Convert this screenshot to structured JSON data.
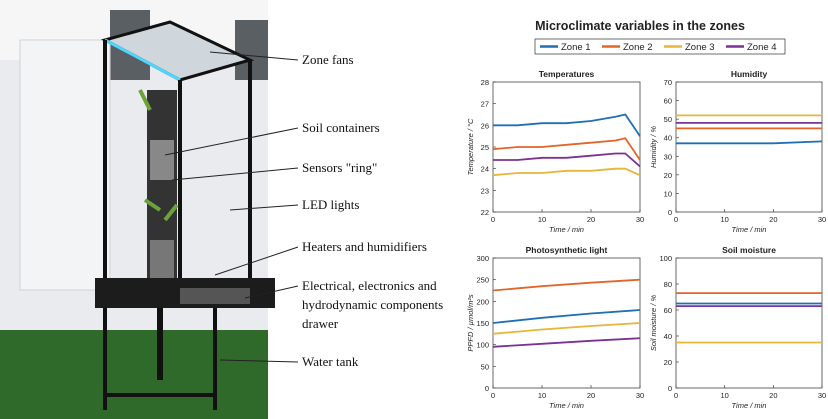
{
  "photo_labels": [
    "Zone fans",
    "Soil containers",
    "Sensors \"ring\"",
    "LED lights",
    "Heaters and humidifiers",
    [
      "Electrical, electronics and",
      "hydrodynamic components",
      "drawer"
    ],
    "Water tank"
  ],
  "figure_title": "Microclimate variables in the zones",
  "chart_data": [
    {
      "type": "line",
      "title": "Temperatures",
      "x_label": "Time / min",
      "y_label": "Temperature / °C",
      "x": [
        0,
        5,
        10,
        15,
        20,
        25,
        27,
        30
      ],
      "xlim": [
        0,
        30
      ],
      "xticks": [
        0,
        10,
        20,
        30
      ],
      "ylim": [
        22,
        28
      ],
      "yticks": [
        22,
        23,
        24,
        25,
        26,
        27,
        28
      ],
      "series": [
        {
          "name": "Zone 1",
          "color": "#1f6fb5",
          "values": [
            26.0,
            26.0,
            26.1,
            26.1,
            26.2,
            26.4,
            26.5,
            25.5
          ]
        },
        {
          "name": "Zone 2",
          "color": "#e0662a",
          "values": [
            24.9,
            25.0,
            25.0,
            25.1,
            25.2,
            25.3,
            25.4,
            24.4
          ]
        },
        {
          "name": "Zone 3",
          "color": "#e8b53a",
          "values": [
            23.7,
            23.8,
            23.8,
            23.9,
            23.9,
            24.0,
            24.0,
            23.7
          ]
        },
        {
          "name": "Zone 4",
          "color": "#7b3294",
          "values": [
            24.4,
            24.4,
            24.5,
            24.5,
            24.6,
            24.7,
            24.7,
            24.1
          ]
        }
      ]
    },
    {
      "type": "line",
      "title": "Humidity",
      "x_label": "Time / min",
      "y_label": "Humidity / %",
      "x": [
        0,
        10,
        20,
        30
      ],
      "xlim": [
        0,
        30
      ],
      "xticks": [
        0,
        10,
        20,
        30
      ],
      "ylim": [
        0,
        70
      ],
      "yticks": [
        0,
        10,
        20,
        30,
        40,
        50,
        60,
        70
      ],
      "series": [
        {
          "color": "#1f6fb5",
          "values": [
            37,
            37,
            37,
            38
          ]
        },
        {
          "color": "#e0662a",
          "values": [
            45,
            45,
            45,
            45
          ]
        },
        {
          "color": "#e8b53a",
          "values": [
            52,
            52,
            52,
            52
          ]
        },
        {
          "color": "#7b3294",
          "values": [
            48,
            48,
            48,
            48
          ]
        }
      ]
    },
    {
      "type": "line",
      "title": "Photosynthetic light",
      "x_label": "Time / min",
      "y_label": "PPFD / µmol/m²s",
      "x": [
        0,
        10,
        20,
        30
      ],
      "xlim": [
        0,
        30
      ],
      "xticks": [
        0,
        10,
        20,
        30
      ],
      "ylim": [
        0,
        300
      ],
      "yticks": [
        0,
        50,
        100,
        150,
        200,
        250,
        300
      ],
      "series": [
        {
          "color": "#1f6fb5",
          "values": [
            150,
            162,
            172,
            180
          ]
        },
        {
          "color": "#e0662a",
          "values": [
            225,
            235,
            243,
            250
          ]
        },
        {
          "color": "#e8b53a",
          "values": [
            125,
            135,
            143,
            150
          ]
        },
        {
          "color": "#7b3294",
          "values": [
            95,
            102,
            109,
            115
          ]
        }
      ]
    },
    {
      "type": "line",
      "title": "Soil moisture",
      "x_label": "Time / min",
      "y_label": "Soil moisture / %",
      "x": [
        0,
        10,
        20,
        30
      ],
      "xlim": [
        0,
        30
      ],
      "xticks": [
        0,
        10,
        20,
        30
      ],
      "ylim": [
        0,
        100
      ],
      "yticks": [
        0,
        20,
        40,
        60,
        80,
        100
      ],
      "series": [
        {
          "color": "#1f6fb5",
          "values": [
            65,
            65,
            65,
            65
          ]
        },
        {
          "color": "#e0662a",
          "values": [
            73,
            73,
            73,
            73
          ]
        },
        {
          "color": "#e8b53a",
          "values": [
            35,
            35,
            35,
            35
          ]
        },
        {
          "color": "#7b3294",
          "values": [
            63,
            63,
            63,
            63
          ]
        }
      ]
    }
  ]
}
